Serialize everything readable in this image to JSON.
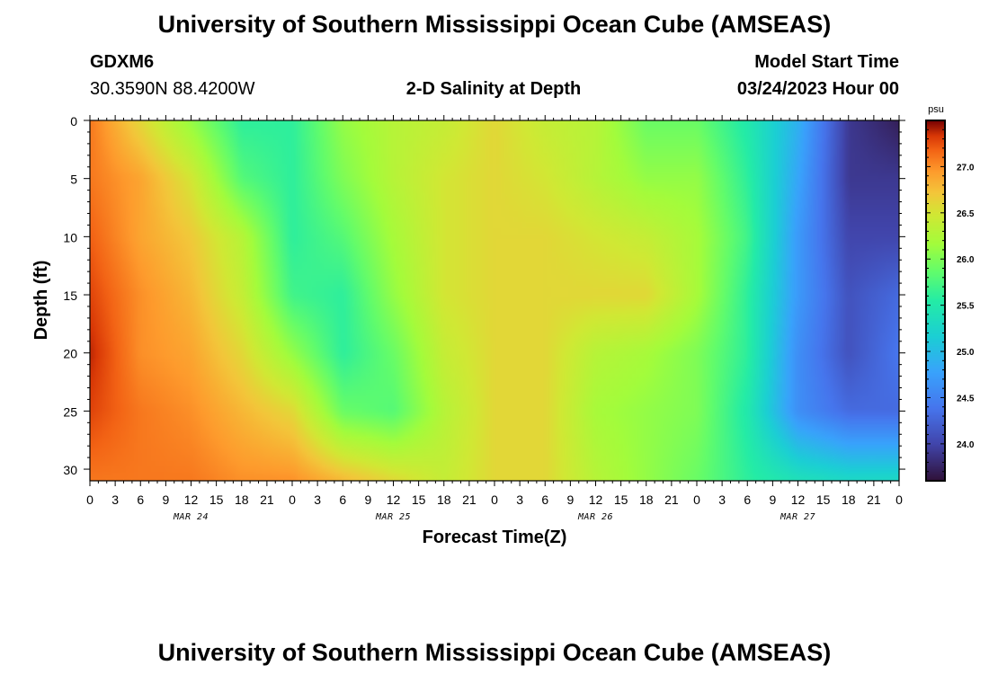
{
  "page": {
    "title": "University of Southern Mississippi Ocean Cube (AMSEAS)",
    "footer_title": "University of Southern Mississippi Ocean Cube (AMSEAS)",
    "station_id": "GDXM6",
    "location": "30.3590N  88.4200W",
    "subtitle": "2-D Salinity at Depth",
    "model_start_label": "Model Start Time",
    "model_start_value": "03/24/2023 Hour 00"
  },
  "chart_data": {
    "type": "heatmap",
    "title": "2-D Salinity at Depth",
    "xlabel": "Forecast Time(Z)",
    "ylabel": "Depth (ft)",
    "x_tick_labels": [
      "0",
      "3",
      "6",
      "9",
      "12",
      "15",
      "18",
      "21",
      "0",
      "3",
      "6",
      "9",
      "12",
      "15",
      "18",
      "21",
      "0",
      "3",
      "6",
      "9",
      "12",
      "15",
      "18",
      "21",
      "0",
      "3",
      "6",
      "9",
      "12",
      "15",
      "18",
      "21",
      "0"
    ],
    "x_hours_range": [
      0,
      96
    ],
    "day_labels": [
      {
        "label": "MAR 24",
        "hour": 12
      },
      {
        "label": "MAR 25",
        "hour": 36
      },
      {
        "label": "MAR 26",
        "hour": 60
      },
      {
        "label": "MAR 27",
        "hour": 84
      }
    ],
    "y_ticks": [
      0,
      5,
      10,
      15,
      20,
      25,
      30
    ],
    "y_tick_labels": [
      "0",
      "5",
      "10",
      "15",
      "20",
      "25",
      "30"
    ],
    "ylim": [
      0,
      31
    ],
    "y_inverted": true,
    "colorbar": {
      "unit": "psu",
      "range": [
        23.6,
        27.5
      ],
      "ticks": [
        24.0,
        24.5,
        25.0,
        25.5,
        26.0,
        26.5,
        27.0
      ],
      "tick_labels": [
        "24.0",
        "24.5",
        "25.0",
        "25.5",
        "26.0",
        "26.5",
        "27.0"
      ],
      "colormap": "turbo"
    },
    "grid_hours": [
      0,
      6,
      12,
      18,
      24,
      30,
      36,
      42,
      48,
      54,
      60,
      66,
      72,
      78,
      84,
      90,
      96
    ],
    "grid_depths": [
      0,
      5,
      10,
      15,
      20,
      25,
      31
    ],
    "values": [
      [
        27.1,
        26.6,
        26.1,
        25.6,
        25.6,
        26.1,
        26.3,
        26.4,
        26.6,
        26.4,
        26.3,
        25.9,
        25.9,
        25.5,
        24.9,
        23.9,
        23.7
      ],
      [
        27.1,
        26.9,
        26.5,
        25.8,
        25.6,
        26.0,
        26.3,
        26.5,
        26.6,
        26.5,
        26.3,
        26.1,
        26.1,
        25.6,
        24.8,
        23.9,
        23.9
      ],
      [
        27.2,
        26.9,
        26.7,
        26.3,
        25.6,
        25.8,
        26.2,
        26.5,
        26.6,
        26.6,
        26.5,
        26.4,
        26.2,
        25.7,
        24.7,
        24.0,
        24.0
      ],
      [
        27.3,
        27.0,
        26.8,
        26.4,
        25.7,
        25.6,
        26.1,
        26.5,
        26.6,
        26.6,
        26.6,
        26.6,
        26.2,
        25.6,
        24.7,
        24.1,
        24.3
      ],
      [
        27.4,
        27.0,
        26.9,
        26.6,
        26.1,
        25.6,
        25.9,
        26.4,
        26.6,
        26.6,
        26.3,
        26.2,
        26.0,
        25.6,
        24.6,
        24.1,
        24.4
      ],
      [
        27.3,
        27.1,
        27.0,
        26.8,
        26.6,
        25.9,
        25.8,
        26.3,
        26.6,
        26.6,
        26.2,
        26.1,
        26.0,
        25.5,
        24.6,
        24.3,
        24.3
      ],
      [
        27.1,
        27.1,
        27.1,
        27.0,
        27.0,
        26.8,
        26.6,
        26.4,
        26.6,
        26.6,
        26.3,
        26.1,
        25.9,
        25.6,
        25.4,
        25.3,
        25.3
      ]
    ]
  }
}
